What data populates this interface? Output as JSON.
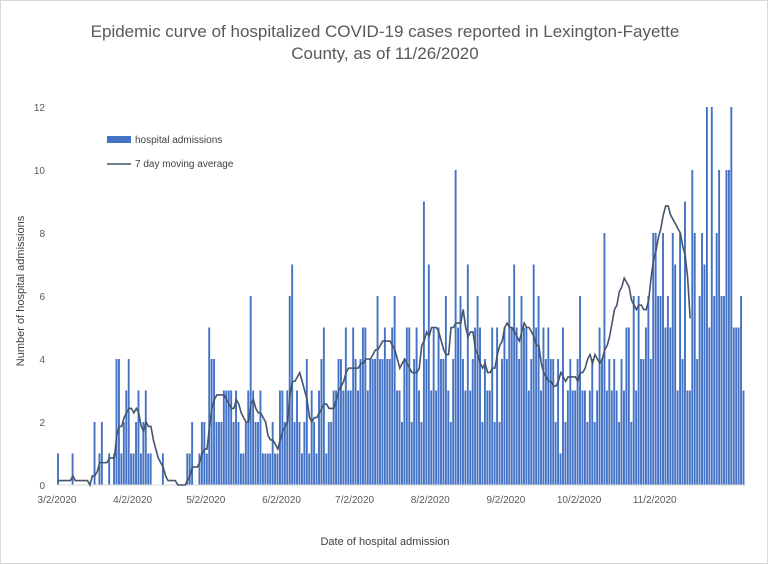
{
  "chart_data": {
    "type": "bar",
    "title": "Epidemic curve of hospitalized COVID-19 cases reported in Lexington-Fayette County, as of 11/26/2020",
    "title_lines": [
      "Epidemic curve of hospitalized COVID-19 cases reported in Lexington-Fayette",
      "County, as of 11/26/2020"
    ],
    "xlabel": "Date of hospital admission",
    "ylabel": "Number of hospital admissions",
    "ylim": [
      0,
      12
    ],
    "yticks": [
      "0",
      "2",
      "4",
      "6",
      "8",
      "10",
      "12"
    ],
    "x_start": "3/2/2020",
    "x_end": "11/26/2020",
    "xtick_labels": [
      "3/2/2020",
      "4/2/2020",
      "5/2/2020",
      "6/2/2020",
      "7/2/2020",
      "8/2/2020",
      "9/2/2020",
      "10/2/2020",
      "11/2/2020"
    ],
    "xtick_day_offsets": [
      0,
      31,
      61,
      92,
      122,
      153,
      184,
      214,
      245
    ],
    "grid": false,
    "legend_position": "top-left",
    "series": [
      {
        "name": "hospital admissions",
        "color": "#4472c4",
        "values": [
          1,
          0,
          0,
          0,
          0,
          0,
          1,
          0,
          0,
          0,
          0,
          0,
          0,
          0,
          0,
          2,
          0,
          1,
          2,
          0,
          0,
          1,
          0,
          1,
          4,
          4,
          1,
          2,
          3,
          4,
          1,
          1,
          2,
          3,
          1,
          2,
          3,
          1,
          1,
          0,
          0,
          0,
          0,
          1,
          0,
          0,
          0,
          0,
          0,
          0,
          0,
          0,
          0,
          1,
          1,
          2,
          0,
          0,
          1,
          2,
          2,
          1,
          5,
          4,
          4,
          2,
          2,
          2,
          3,
          3,
          3,
          3,
          2,
          3,
          2,
          1,
          1,
          2,
          3,
          6,
          3,
          2,
          2,
          3,
          1,
          1,
          1,
          1,
          2,
          1,
          1,
          3,
          3,
          2,
          3,
          6,
          7,
          2,
          3,
          2,
          1,
          2,
          4,
          1,
          3,
          2,
          1,
          3,
          4,
          5,
          1,
          2,
          2,
          3,
          3,
          4,
          4,
          3,
          5,
          3,
          3,
          5,
          4,
          3,
          4,
          5,
          5,
          3,
          4,
          4,
          4,
          6,
          4,
          4,
          5,
          4,
          4,
          5,
          6,
          3,
          3,
          2,
          4,
          5,
          5,
          2,
          4,
          5,
          3,
          2,
          9,
          4,
          7,
          3,
          5,
          3,
          5,
          4,
          4,
          6,
          3,
          2,
          4,
          10,
          5,
          6,
          4,
          3,
          7,
          3,
          4,
          5,
          6,
          5,
          2,
          4,
          3,
          3,
          5,
          2,
          5,
          2,
          4,
          5,
          4,
          6,
          5,
          7,
          5,
          4,
          6,
          5,
          5,
          3,
          4,
          7,
          5,
          6,
          3,
          5,
          4,
          5,
          4,
          4,
          2,
          4,
          1,
          5,
          2,
          3,
          4,
          3,
          3,
          4,
          6,
          3,
          3,
          2,
          3,
          4,
          2,
          3,
          5,
          4,
          8,
          3,
          4,
          3,
          4,
          3,
          2,
          4,
          3,
          5,
          5,
          2,
          6,
          3,
          6,
          4,
          4,
          5,
          6,
          4,
          8,
          8,
          6,
          6,
          8,
          5,
          6,
          5,
          8,
          7,
          3,
          8,
          4,
          9,
          3,
          3,
          10,
          8,
          4,
          6,
          8,
          7,
          12,
          5,
          12,
          6,
          8,
          10,
          6,
          6,
          10,
          10,
          12,
          5,
          5,
          5,
          6,
          3
        ],
        "note": ""
      },
      {
        "name": "7 day moving average",
        "color": "#44546a",
        "type": "line",
        "values": [
          0.14,
          0.14,
          0.14,
          0.14,
          0.14,
          0.14,
          0.29,
          0.14,
          0.14,
          0.14,
          0.14,
          0.14,
          0.14,
          0,
          0.29,
          0.29,
          0.43,
          0.71,
          0.71,
          0.71,
          0.71,
          0.86,
          0.86,
          0.86,
          1.57,
          1.86,
          1.86,
          2.14,
          2.29,
          2.43,
          2.43,
          2.29,
          2.43,
          2.29,
          1.86,
          1.71,
          2.0,
          1.86,
          1.86,
          1.43,
          1.14,
          0.86,
          0.71,
          0.57,
          0.29,
          0.14,
          0.14,
          0.14,
          0.14,
          0.0,
          0.0,
          0.0,
          0.0,
          0.14,
          0.29,
          0.57,
          0.57,
          0.57,
          0.71,
          1.0,
          1.14,
          1.14,
          1.86,
          2.43,
          2.71,
          2.86,
          2.86,
          2.86,
          2.86,
          2.71,
          2.57,
          2.43,
          2.43,
          2.71,
          2.57,
          2.29,
          2.14,
          2.0,
          2.0,
          2.57,
          2.71,
          2.43,
          2.29,
          2.29,
          2.14,
          2.0,
          1.57,
          1.43,
          1.43,
          1.29,
          1.14,
          1.43,
          1.71,
          1.86,
          2.0,
          2.86,
          3.29,
          3.29,
          3.43,
          3.57,
          3.29,
          3.0,
          2.71,
          2.14,
          2.0,
          2.14,
          2.14,
          2.29,
          2.43,
          2.57,
          2.57,
          2.43,
          2.43,
          2.43,
          2.71,
          3.0,
          3.14,
          3.29,
          3.57,
          3.71,
          3.71,
          3.71,
          3.71,
          3.71,
          3.86,
          3.86,
          4.0,
          4.0,
          4.0,
          4.14,
          4.29,
          4.29,
          4.43,
          4.57,
          4.57,
          4.57,
          4.57,
          4.43,
          4.29,
          4.0,
          3.71,
          3.86,
          4.0,
          3.86,
          3.71,
          3.57,
          3.57,
          3.57,
          3.71,
          4.43,
          4.57,
          4.86,
          4.71,
          5.0,
          5.0,
          5.0,
          4.86,
          4.57,
          4.29,
          4.14,
          4.14,
          5.0,
          5.0,
          5.14,
          5.14,
          5.14,
          5.57,
          5.0,
          4.71,
          4.86,
          4.86,
          4.29,
          4.14,
          3.86,
          3.71,
          3.86,
          3.57,
          3.57,
          3.71,
          3.71,
          4.14,
          4.43,
          4.57,
          5.0,
          5.14,
          5.0,
          5.0,
          4.86,
          4.71,
          4.57,
          4.86,
          5.14,
          5.0,
          5.0,
          4.86,
          4.71,
          4.43,
          4.43,
          3.86,
          3.57,
          3.43,
          3.29,
          3.29,
          3.14,
          3.14,
          3.29,
          3.57,
          3.43,
          3.29,
          3.43,
          3.43,
          3.43,
          3.43,
          3.29,
          3.57,
          3.57,
          3.71,
          4.0,
          4.14,
          3.86,
          4.14,
          4.0,
          3.86,
          4.0,
          4.29,
          4.43,
          4.71,
          5.14,
          5.57,
          5.71,
          6.14,
          6.29,
          6.57,
          6.43,
          6.29,
          5.86,
          5.71,
          5.57,
          5.71,
          5.71,
          5.57,
          5.57,
          5.86,
          6.57,
          7.14,
          7.43,
          7.86,
          8.14,
          8.57,
          8.86,
          8.86,
          8.57,
          8.43,
          8.29,
          8.14,
          8.0,
          7.57,
          7.29,
          6.57,
          5.29
        ],
        "note": ""
      }
    ]
  }
}
